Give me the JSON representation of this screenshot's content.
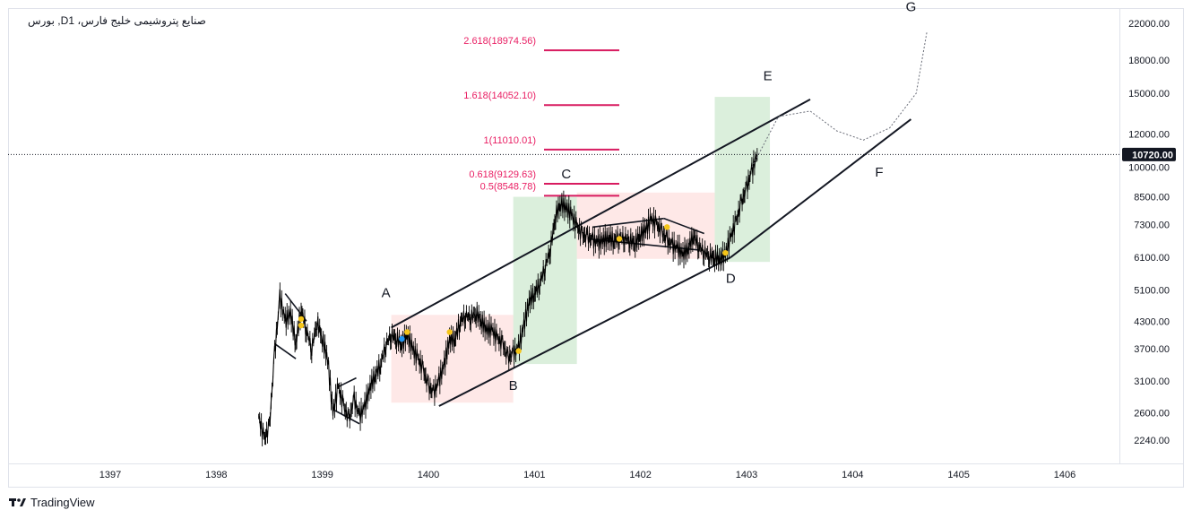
{
  "chart_data": {
    "type": "line",
    "title": "بورس ,Dصنایع پتروشیمی خلیج فارس، 1",
    "y_scale": "log",
    "ylim": [
      2000,
      23000
    ],
    "y_ticks": [
      "22000.00",
      "18000.00",
      "15000.00",
      "12000.00",
      "10000.00",
      "8500.00",
      "7300.00",
      "6100.00",
      "5100.00",
      "4300.00",
      "3700.00",
      "3100.00",
      "2600.00",
      "2240.00"
    ],
    "x_ticks": [
      "1397",
      "1398",
      "1399",
      "1400",
      "1401",
      "1402",
      "1403",
      "1404",
      "1405",
      "1406"
    ],
    "last_price": "10720.00",
    "price_series": {
      "name": "",
      "x": [
        1398.4,
        1398.45,
        1398.5,
        1398.55,
        1398.6,
        1398.65,
        1398.7,
        1398.75,
        1398.8,
        1398.85,
        1398.9,
        1398.95,
        1399.0,
        1399.05,
        1399.1,
        1399.15,
        1399.2,
        1399.25,
        1399.3,
        1399.35,
        1399.4,
        1399.45,
        1399.5,
        1399.55,
        1399.6,
        1399.65,
        1399.7,
        1399.75,
        1399.8,
        1399.85,
        1399.9,
        1399.95,
        1400.0,
        1400.05,
        1400.1,
        1400.15,
        1400.2,
        1400.25,
        1400.3,
        1400.35,
        1400.4,
        1400.45,
        1400.5,
        1400.55,
        1400.6,
        1400.65,
        1400.7,
        1400.75,
        1400.8,
        1400.85,
        1400.9,
        1400.95,
        1401.0,
        1401.05,
        1401.1,
        1401.15,
        1401.2,
        1401.25,
        1401.3,
        1401.35,
        1401.4,
        1401.45,
        1401.5,
        1401.55,
        1401.6,
        1401.65,
        1401.7,
        1401.75,
        1401.8,
        1401.85,
        1401.9,
        1401.95,
        1402.0,
        1402.05,
        1402.1,
        1402.15,
        1402.2,
        1402.25,
        1402.3,
        1402.35,
        1402.4,
        1402.45,
        1402.5,
        1402.55,
        1402.6,
        1402.65,
        1402.7,
        1402.75,
        1402.8,
        1402.85,
        1402.9,
        1402.95,
        1403.0,
        1403.05,
        1403.1
      ],
      "y": [
        2550,
        2250,
        2400,
        3600,
        4900,
        4300,
        4500,
        3800,
        4600,
        4100,
        3700,
        4300,
        3900,
        3500,
        2600,
        3000,
        2700,
        2500,
        2800,
        2550,
        2700,
        3000,
        3200,
        3400,
        3800,
        4000,
        3900,
        3800,
        4000,
        3700,
        3500,
        3300,
        3000,
        2900,
        3100,
        3400,
        3900,
        3900,
        4300,
        4450,
        4400,
        4500,
        4300,
        4100,
        4100,
        3900,
        3800,
        3500,
        3600,
        3700,
        4200,
        4800,
        5000,
        5300,
        5800,
        6400,
        7700,
        8200,
        8000,
        7700,
        7200,
        6900,
        6800,
        6700,
        6600,
        6700,
        6800,
        6700,
        6800,
        6800,
        6700,
        6600,
        6900,
        7100,
        7500,
        7300,
        7000,
        6700,
        6500,
        6400,
        6200,
        6400,
        6900,
        6500,
        6300,
        6150,
        6100,
        6050,
        6200,
        6800,
        7400,
        8200,
        8900,
        9800,
        10720
      ]
    },
    "wave_labels": [
      "A",
      "B",
      "C",
      "D",
      "E",
      "F",
      "G"
    ],
    "fib_levels": [
      {
        "label": "2.618(18974.56)",
        "value": 18974.56
      },
      {
        "label": "1.618(14052.10)",
        "value": 14052.1
      },
      {
        "label": "1(11010.01)",
        "value": 11010.01
      },
      {
        "label": "0.618(9129.63)",
        "value": 9129.63
      },
      {
        "label": "0.5(8548.78)",
        "value": 8548.78
      }
    ],
    "trendlines": [
      {
        "from": [
          1399.65,
          4150
        ],
        "to": [
          1403.6,
          14500
        ]
      },
      {
        "from": [
          1400.1,
          2700
        ],
        "to": [
          1402.85,
          6100
        ]
      },
      {
        "from": [
          1402.85,
          6100
        ],
        "to": [
          1404.55,
          13000
        ]
      }
    ],
    "colors": {
      "price": "#000000",
      "fib": "#d81b60",
      "fib_label": "#e91e63",
      "green_zone": "rgba(76, 175, 80, 0.2)",
      "red_zone": "rgba(244, 67, 54, 0.12)",
      "marker_yellow": "#f5c518",
      "marker_blue": "#2196f3",
      "badge": "#131722"
    }
  },
  "brand": {
    "name": "TradingView"
  }
}
